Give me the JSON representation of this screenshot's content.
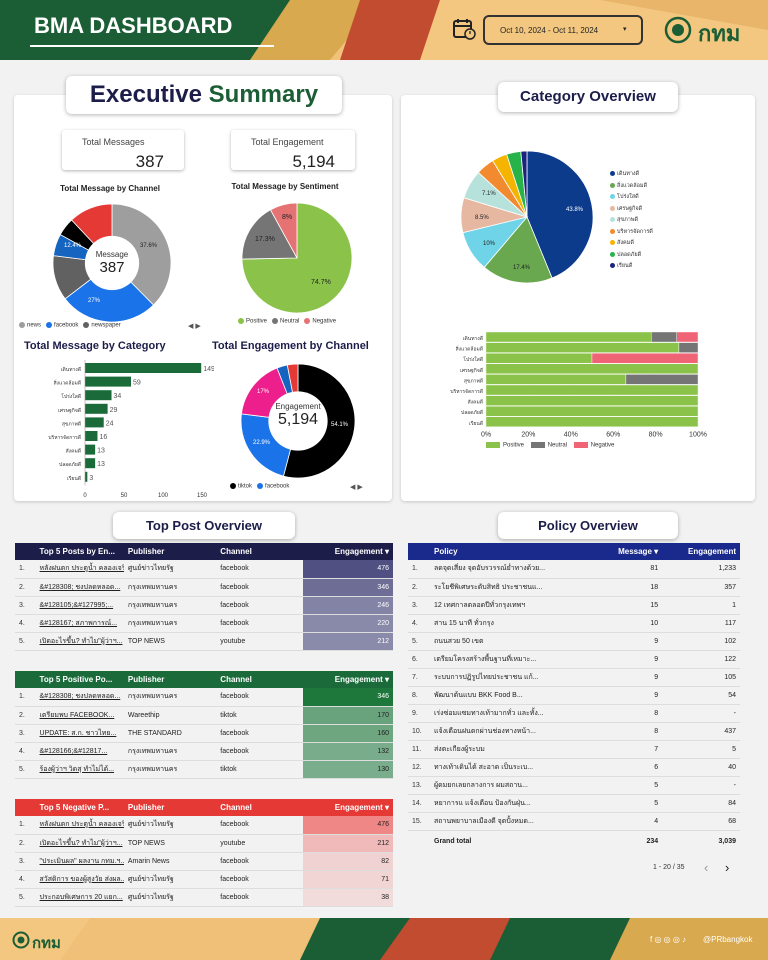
{
  "header": {
    "title": "BMA DASHBOARD",
    "date_range": "Oct 10, 2024 - Oct 11, 2024",
    "logo_text": "กทม",
    "calendar_icon": "calendar-icon"
  },
  "executive": {
    "title_part1": "Executive",
    "title_part2": "Summary",
    "kpi_messages": {
      "label": "Total Messages",
      "value": "387"
    },
    "kpi_engagement": {
      "label": "Total Engagement",
      "value": "5,194"
    },
    "channel_title": "Total Message by Channel",
    "channel_center_label": "Message",
    "channel_center_value": "387",
    "channel_slice_labels": [
      "37.6%",
      "27%",
      "12.4%"
    ],
    "channel_legend": [
      "news",
      "facebook",
      "newspaper"
    ],
    "sentiment_title": "Total Message by Sentiment",
    "sentiment_slice_labels": [
      "74.7%",
      "17.3%",
      "8%"
    ],
    "sentiment_legend": [
      "Positive",
      "Neutral",
      "Negative"
    ],
    "category_title": "Total Message by Category",
    "engagement_title": "Total Engagement by Channel",
    "engagement_center_label": "Engagement",
    "engagement_center_value": "5,194",
    "engagement_slice_labels": [
      "54.1%",
      "22.9%",
      "17%"
    ],
    "engagement_legend": [
      "tiktok",
      "facebook"
    ],
    "pager": "◀ ▶"
  },
  "category_overview": {
    "title": "Category Overview",
    "pie_labels": [
      "43.8%",
      "17.4%",
      "10%",
      "8.5%",
      "7.1%"
    ],
    "legend": [
      "เดินทางดี",
      "สิ่งแวดล้อมดี",
      "โปร่งใสดี",
      "เศรษฐกิจดี",
      "สุขภาพดี",
      "บริหารจัดการดี",
      "สังคมดี",
      "ปลอดภัยดี",
      "เรียนดี"
    ],
    "bar_ticks": [
      "0%",
      "20%",
      "40%",
      "60%",
      "80%",
      "100%"
    ],
    "bar_legend": [
      "Positive",
      "Neutral",
      "Negative"
    ]
  },
  "top_post": {
    "title": "Top Post Overview",
    "top5": {
      "headers": [
        "Top 5 Posts by En...",
        "Publisher",
        "Channel",
        "Engagement ▾"
      ],
      "rows": [
        [
          "1.",
          "หลังฝนตก ประตูน้ำ คลองเจริญ...",
          "ศูนย์ข่าวไทยรัฐ",
          "facebook",
          "476"
        ],
        [
          "2.",
          "&#128308; ชงปลดหลอด...",
          "กรุงเทพมหานคร",
          "facebook",
          "346"
        ],
        [
          "3.",
          "&#128105;&#127995;...",
          "กรุงเทพมหานคร",
          "facebook",
          "246"
        ],
        [
          "4.",
          "&#128167; สภาพการณ์...",
          "กรุงเทพมหานคร",
          "facebook",
          "220"
        ],
        [
          "5.",
          "เปิดอะไรขึ้น? ทำไม\"ผู้ว่าฯ...",
          "TOP NEWS",
          "youtube",
          "212"
        ]
      ]
    },
    "positive": {
      "headers": [
        "Top 5 Positive Po...",
        "Publisher",
        "Channel",
        "Engagement ▾"
      ],
      "rows": [
        [
          "1.",
          "&#128308; ชงปลดหลอด...",
          "กรุงเทพมหานคร",
          "facebook",
          "346"
        ],
        [
          "2.",
          "เตรียมพบ FACEBOOK...",
          "Wareethip",
          "tiktok",
          "170"
        ],
        [
          "3.",
          "UPDATE: ส.ก. ชาวไทย...",
          "THE STANDARD",
          "facebook",
          "160"
        ],
        [
          "4.",
          "&#128166;&#12817...",
          "กรุงเทพมหานคร",
          "facebook",
          "132"
        ],
        [
          "5.",
          "ร้องผู้ว่าฯ วิดสุ ทำไม่ได้...",
          "กรุงเทพมหานคร",
          "tiktok",
          "130"
        ]
      ]
    },
    "negative": {
      "headers": [
        "Top 5 Negative P...",
        "Publisher",
        "Channel",
        "Engagement ▾"
      ],
      "rows": [
        [
          "1.",
          "หลังฝนตก ประตูน้ำ คลองเจริญ...",
          "ศูนย์ข่าวไทยรัฐ",
          "facebook",
          "476"
        ],
        [
          "2.",
          "เปิดอะไรขึ้น? ทำไม\"ผู้ว่าฯ...",
          "TOP NEWS",
          "youtube",
          "212"
        ],
        [
          "3.",
          "\"ประเมินผล\" ผลงาน กทม.ฯ...",
          "Amarin News",
          "facebook",
          "82"
        ],
        [
          "4.",
          "สวัสดิการ ของผู้สูงวัย ส่งผล...",
          "ศูนย์ข่าวไทยรัฐ",
          "facebook",
          "71"
        ],
        [
          "5.",
          "ประกอบพิเศษการ 20 แยก...",
          "ศูนย์ข่าวไทยรัฐ",
          "facebook",
          "38"
        ]
      ]
    }
  },
  "policy": {
    "title": "Policy Overview",
    "headers": [
      "Policy",
      "Message ▾",
      "Engagement"
    ],
    "rows": [
      [
        "1.",
        "ลดจุดเสี่ยง จุดอับรวรรณ์ย่ำทางด้วย...",
        "81",
        "1,233"
      ],
      [
        "2.",
        "ระโยชีพิเศษระดับสิทธิ ประชาชนแ...",
        "18",
        "357"
      ],
      [
        "3.",
        "12 เทศกาลตลอดปีทั่วกรุงเทพฯ",
        "15",
        "1"
      ],
      [
        "4.",
        "สาน 15 นาที ทั่วกรุง",
        "10",
        "117"
      ],
      [
        "5.",
        "ถนนสวย 50 เขต",
        "9",
        "102"
      ],
      [
        "6.",
        "เตรียมโครงสร้างพื้นฐานที่เหมาะ...",
        "9",
        "122"
      ],
      [
        "7.",
        "ระบบการปฏิรูปไทยประชาชน แก้...",
        "9",
        "105"
      ],
      [
        "8.",
        "พัฒนาต้นแบบ BKK Food B...",
        "9",
        "54"
      ],
      [
        "9.",
        "เร่งซ่อมแซมทางเท้ามากทั่ว และทั้ง...",
        "8",
        "-"
      ],
      [
        "10.",
        "แจ้งเตือนฝนตกผ่านช่องทางหน้า...",
        "8",
        "437"
      ],
      [
        "11.",
        "ส่งตะเกียงผู้ระบม",
        "7",
        "5"
      ],
      [
        "12.",
        "ทางเท้าเดินได้ สะอาด เป็นระเบ...",
        "6",
        "40"
      ],
      [
        "13.",
        "ผู้ดมยกเลยกลางการ ผมสถาน...",
        "5",
        "-"
      ],
      [
        "14.",
        "หยาการแ แจ้งเตือน ป้องกันฝุ่น...",
        "5",
        "84"
      ],
      [
        "15.",
        "สถานพยาบาลเมืองดี จุดปั้งหมด...",
        "4",
        "68"
      ]
    ],
    "total_label": "Grand total",
    "total_message": "234",
    "total_engagement": "3,039",
    "pagination": "1 - 20 / 35",
    "prev": "‹",
    "next": "›"
  },
  "footer": {
    "logo_text": "กทม",
    "handle": "@PRbangkok",
    "social_icons": "f ◎ ◎ ◎ ♪"
  },
  "chart_data": [
    {
      "type": "pie",
      "title": "Total Message by Channel",
      "categories": [
        "news",
        "facebook",
        "newspaper",
        "other-1",
        "other-2",
        "other-3"
      ],
      "values": [
        37.6,
        27,
        12.4,
        6,
        5,
        12
      ],
      "colors": [
        "#9e9e9e",
        "#1a73e8",
        "#616161",
        "#1565c0",
        "#000000",
        "#e53935"
      ]
    },
    {
      "type": "pie",
      "title": "Total Message by Sentiment",
      "categories": [
        "Positive",
        "Neutral",
        "Negative"
      ],
      "values": [
        74.7,
        17.3,
        8
      ],
      "colors": [
        "#8bc34a",
        "#757575",
        "#e57373"
      ]
    },
    {
      "type": "bar",
      "title": "Total Message by Category",
      "categories": [
        "เดินทางดี",
        "สิ่งแวดล้อมดี",
        "โปร่งใสดี",
        "เศรษฐกิจดี",
        "สุขภาพดี",
        "บริหารจัดการดี",
        "สังคมดี",
        "ปลอดภัยดี",
        "เรียนดี"
      ],
      "values": [
        149,
        59,
        34,
        29,
        24,
        16,
        13,
        13,
        3
      ],
      "xlim": [
        0,
        150
      ],
      "xticks": [
        0,
        50,
        100,
        150
      ]
    },
    {
      "type": "pie",
      "title": "Total Engagement by Channel",
      "categories": [
        "tiktok",
        "facebook",
        "other-1",
        "other-2",
        "other-3"
      ],
      "values": [
        54.1,
        22.9,
        17,
        3,
        3
      ],
      "colors": [
        "#000000",
        "#1a73e8",
        "#ec1f8c",
        "#1565c0",
        "#e53935"
      ]
    },
    {
      "type": "pie",
      "title": "Category Overview",
      "categories": [
        "เดินทางดี",
        "สิ่งแวดล้อมดี",
        "โปร่งใสดี",
        "เศรษฐกิจดี",
        "สุขภาพดี",
        "บริหารจัดการดี",
        "สังคมดี",
        "ปลอดภัยดี",
        "เรียนดี"
      ],
      "values": [
        43.8,
        17.4,
        10,
        8.5,
        7.1,
        4.5,
        3.7,
        3.5,
        1.5
      ],
      "colors": [
        "#0d3b8c",
        "#6aa84f",
        "#6fd4e8",
        "#e6b8a2",
        "#b7e2dc",
        "#f28b30",
        "#f4b400",
        "#27b34a",
        "#1a237e"
      ]
    },
    {
      "type": "bar",
      "stacked": true,
      "categories": [
        "เดินทางดี",
        "สิ่งแวดล้อมดี",
        "โปร่งใสดี",
        "เศรษฐกิจดี",
        "สุขภาพดี",
        "บริหารจัดการดี",
        "สังคมดี",
        "ปลอดภัยดี",
        "เรียนดี"
      ],
      "series": [
        {
          "name": "Positive",
          "values": [
            78,
            91,
            50,
            100,
            66,
            100,
            100,
            100,
            100
          ],
          "color": "#8bc34a"
        },
        {
          "name": "Neutral",
          "values": [
            12,
            9,
            0,
            0,
            34,
            0,
            0,
            0,
            0
          ],
          "color": "#757575"
        },
        {
          "name": "Negative",
          "values": [
            10,
            0,
            50,
            0,
            0,
            0,
            0,
            0,
            0
          ],
          "color": "#f06576"
        }
      ],
      "xlim": [
        0,
        100
      ]
    }
  ]
}
